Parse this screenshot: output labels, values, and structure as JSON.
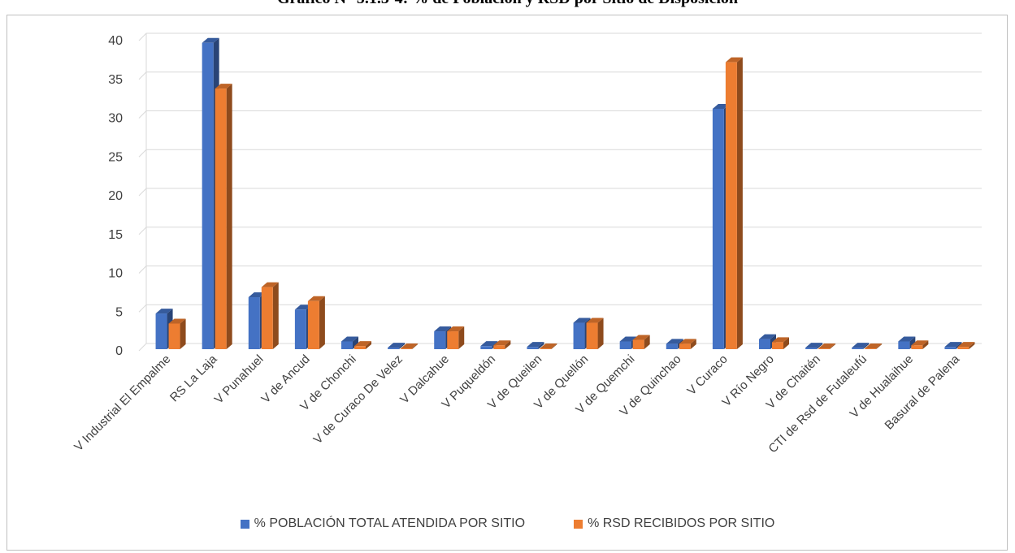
{
  "title": "Gráfico N° 5.1.3-4: % de Población y RSD por Sitio de Disposición",
  "legend": {
    "series1": "% POBLACIÓN TOTAL ATENDIDA POR SITIO",
    "series2": "% RSD RECIBIDOS POR SITIO"
  },
  "colors": {
    "series1": "#4472c4",
    "series2": "#ed7d31",
    "grid": "#d9d9d9",
    "text": "#404040"
  },
  "chart_data": {
    "type": "bar",
    "title": "",
    "xlabel": "",
    "ylabel": "",
    "ylim": [
      0,
      40
    ],
    "yticks": [
      0,
      5,
      10,
      15,
      20,
      25,
      30,
      35,
      40
    ],
    "grid": true,
    "legend_position": "bottom",
    "categories": [
      "V Industrial El Empalme",
      "RS La Laja",
      "V Punahuel",
      "V de Ancud",
      "V de Chonchi",
      "V de Curaco De Velez",
      "V Dalcahue",
      "V Puqueldón",
      "V de Queilen",
      "V de Quellón",
      "V de Quemchi",
      "V de Quinchao",
      "V Curaco",
      "V Río Negro",
      "V de Chaitén",
      "CTI de Rsd de Futaleufú",
      "V de Hualaihue",
      "Basural de Palena"
    ],
    "series": [
      {
        "name": "% POBLACIÓN TOTAL ATENDIDA POR SITIO",
        "values": [
          4.6,
          39.5,
          6.7,
          5.1,
          1.0,
          0.2,
          2.3,
          0.4,
          0.3,
          3.4,
          1.0,
          0.7,
          31.0,
          1.3,
          0.2,
          0.2,
          1.0,
          0.3
        ]
      },
      {
        "name": "% RSD RECIBIDOS POR SITIO",
        "values": [
          3.3,
          33.6,
          8.0,
          6.2,
          0.4,
          0.1,
          2.3,
          0.5,
          0.1,
          3.4,
          1.2,
          0.7,
          37.0,
          0.9,
          0.1,
          0.1,
          0.5,
          0.3
        ]
      }
    ]
  }
}
